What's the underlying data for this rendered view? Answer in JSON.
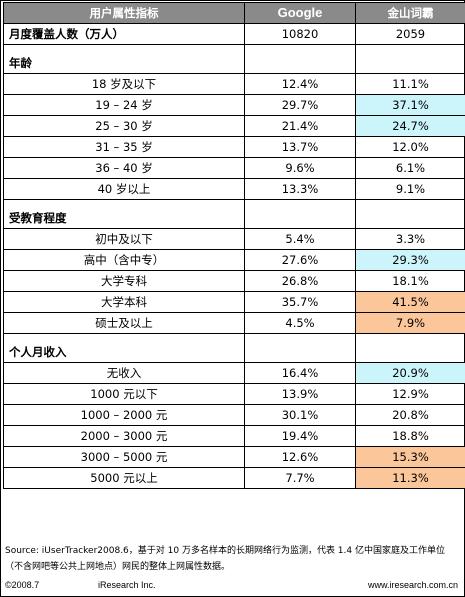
{
  "chart_data": {
    "type": "table",
    "columns": [
      "用户属性指标",
      "Google",
      "金山词霸"
    ],
    "total": {
      "label": "月度覆盖人数（万人）",
      "google": "10820",
      "jinshan": "2059"
    },
    "sections": [
      {
        "title": "年龄",
        "rows": [
          {
            "label": "18 岁及以下",
            "google": "12.4%",
            "jinshan": "11.1%"
          },
          {
            "label": "19 – 24 岁",
            "google": "29.7%",
            "jinshan": "37.1%",
            "hl": "blue"
          },
          {
            "label": "25 – 30 岁",
            "google": "21.4%",
            "jinshan": "24.7%",
            "hl": "blue"
          },
          {
            "label": "31 – 35 岁",
            "google": "13.7%",
            "jinshan": "12.0%"
          },
          {
            "label": "36 – 40 岁",
            "google": "9.6%",
            "jinshan": "6.1%"
          },
          {
            "label": "40 岁以上",
            "google": "13.3%",
            "jinshan": "9.1%"
          }
        ]
      },
      {
        "title": "受教育程度",
        "rows": [
          {
            "label": "初中及以下",
            "google": "5.4%",
            "jinshan": "3.3%"
          },
          {
            "label": "高中（含中专）",
            "google": "27.6%",
            "jinshan": "29.3%",
            "hl": "blue"
          },
          {
            "label": "大学专科",
            "google": "26.8%",
            "jinshan": "18.1%"
          },
          {
            "label": "大学本科",
            "google": "35.7%",
            "jinshan": "41.5%",
            "hl": "orange"
          },
          {
            "label": "硕士及以上",
            "google": "4.5%",
            "jinshan": "7.9%",
            "hl": "orange"
          }
        ]
      },
      {
        "title": "个人月收入",
        "rows": [
          {
            "label": "无收入",
            "google": "16.4%",
            "jinshan": "20.9%",
            "hl": "blue"
          },
          {
            "label": "1000 元以下",
            "google": "13.9%",
            "jinshan": "12.9%"
          },
          {
            "label": "1000 – 2000 元",
            "google": "30.1%",
            "jinshan": "20.8%"
          },
          {
            "label": "2000 – 3000 元",
            "google": "19.4%",
            "jinshan": "18.8%"
          },
          {
            "label": "3000 – 5000 元",
            "google": "12.6%",
            "jinshan": "15.3%",
            "hl": "orange"
          },
          {
            "label": "5000 元以上",
            "google": "7.7%",
            "jinshan": "11.3%",
            "hl": "orange"
          }
        ]
      }
    ]
  },
  "footnote": "Source: iUserTracker2008.6，基于对 10 万多名样本的长期网络行为监测，代表 1.4 亿中国家庭及工作单位（不含网吧等公共上网地点）网民的整体上网属性数据。",
  "footer": {
    "copyright": "©2008.7",
    "company": "iResearch Inc.",
    "url": "www.iresearch.com.cn"
  },
  "colors": {
    "header_bg": "#8a8a8a",
    "highlight_blue": "#ccf5fb",
    "highlight_orange": "#fbc69a"
  }
}
